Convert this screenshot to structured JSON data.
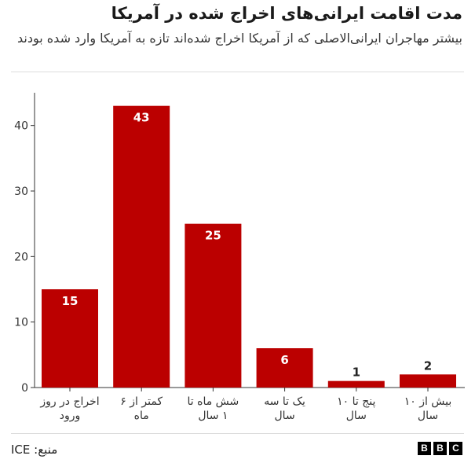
{
  "title": "مدت اقامت ایرانی‌های اخراج شده در آمریکا",
  "subtitle": "بیشتر مهاجران ایرانی‌الاصلی که از آمریکا اخراج شده‌اند تازه به آمریکا وارد شده بودند",
  "source": "منبع: ICE",
  "logo": {
    "letters": [
      "B",
      "B",
      "C"
    ]
  },
  "colors": {
    "bar": "#bb0000",
    "bar_label_light": "#ffffff",
    "bar_label_dark": "#222222",
    "axis": "#333333",
    "grid": "#dcdcdc"
  },
  "chart_data": {
    "type": "bar",
    "title": "مدت اقامت ایرانی‌های اخراج شده در آمریکا",
    "xlabel": "",
    "ylabel": "",
    "categories": [
      [
        "اخراج در روز",
        "ورود"
      ],
      [
        "کمتر از ۶",
        "ماه"
      ],
      [
        "شش ماه تا",
        "۱ سال"
      ],
      [
        "یک تا سه",
        "سال"
      ],
      [
        "پنج تا ۱۰",
        "سال"
      ],
      [
        "بیش از ۱۰",
        "سال"
      ]
    ],
    "values": [
      15,
      43,
      25,
      6,
      1,
      2
    ],
    "ylim": [
      0,
      45
    ],
    "yticks": [
      0,
      10,
      20,
      30,
      40
    ],
    "grid": false,
    "legend": "none"
  }
}
